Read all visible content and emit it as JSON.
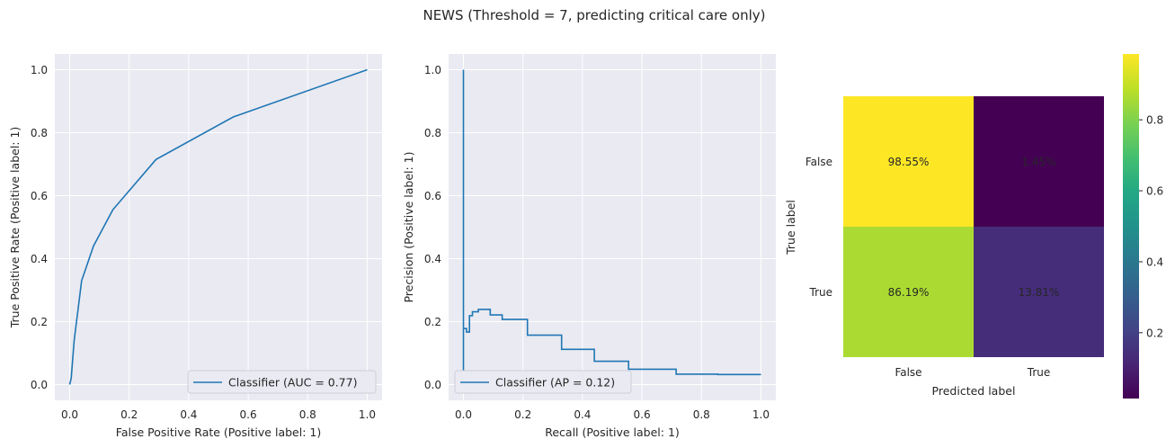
{
  "figure": {
    "title": "NEWS (Threshold = 7, predicting critical care only)"
  },
  "chart_data": [
    {
      "type": "line",
      "name": "roc",
      "xlabel": "False Positive Rate (Positive label: 1)",
      "ylabel": "True Positive Rate (Positive label: 1)",
      "xlim": [
        -0.05,
        1.05
      ],
      "ylim": [
        -0.05,
        1.05
      ],
      "xticks": [
        "0.0",
        "0.2",
        "0.4",
        "0.6",
        "0.8",
        "1.0"
      ],
      "yticks": [
        "0.0",
        "0.2",
        "0.4",
        "0.6",
        "0.8",
        "1.0"
      ],
      "grid": true,
      "legend_position": "lower-right",
      "color": "#1f77b4",
      "series": [
        {
          "name": "Classifier (AUC = 0.77)",
          "x": [
            0.0,
            0.005,
            0.015,
            0.04,
            0.08,
            0.145,
            0.29,
            0.55,
            1.0
          ],
          "y": [
            0.0,
            0.02,
            0.14,
            0.33,
            0.44,
            0.555,
            0.715,
            0.85,
            1.0
          ]
        }
      ]
    },
    {
      "type": "line",
      "name": "precision-recall",
      "step": "post",
      "xlabel": "Recall (Positive label: 1)",
      "ylabel": "Precision (Positive label: 1)",
      "xlim": [
        -0.05,
        1.05
      ],
      "ylim": [
        -0.05,
        1.05
      ],
      "xticks": [
        "0.0",
        "0.2",
        "0.4",
        "0.6",
        "0.8",
        "1.0"
      ],
      "yticks": [
        "0.0",
        "0.2",
        "0.4",
        "0.6",
        "0.8",
        "1.0"
      ],
      "grid": true,
      "legend_position": "lower-left",
      "color": "#1f77b4",
      "series": [
        {
          "name": "Classifier (AP = 0.12)",
          "x": [
            1.0,
            0.855,
            0.715,
            0.555,
            0.44,
            0.33,
            0.215,
            0.13,
            0.09,
            0.05,
            0.03,
            0.02,
            0.01,
            0.0,
            0.0
          ],
          "y": [
            0.032,
            0.033,
            0.049,
            0.074,
            0.112,
            0.157,
            0.207,
            0.221,
            0.239,
            0.231,
            0.219,
            0.167,
            0.178,
            0.0,
            1.0
          ]
        }
      ]
    },
    {
      "type": "heatmap",
      "name": "confusion-matrix",
      "xlabel": "Predicted label",
      "ylabel": "True label",
      "xticklabels": [
        "False",
        "True"
      ],
      "yticklabels": [
        "False",
        "True"
      ],
      "values": [
        [
          0.9855,
          0.0145
        ],
        [
          0.8619,
          0.1381
        ]
      ],
      "cell_labels": [
        [
          "98.55%",
          "1.45%"
        ],
        [
          "86.19%",
          "13.81%"
        ]
      ],
      "colormap": "viridis",
      "colorbar": {
        "range": [
          0.0145,
          0.9855
        ],
        "ticks": [
          0.2,
          0.4,
          0.6,
          0.8
        ],
        "tick_labels": [
          "0.2",
          "0.4",
          "0.6",
          "0.8"
        ]
      },
      "text_color_light": "#fde725",
      "text_color_dark": "#440154"
    }
  ]
}
